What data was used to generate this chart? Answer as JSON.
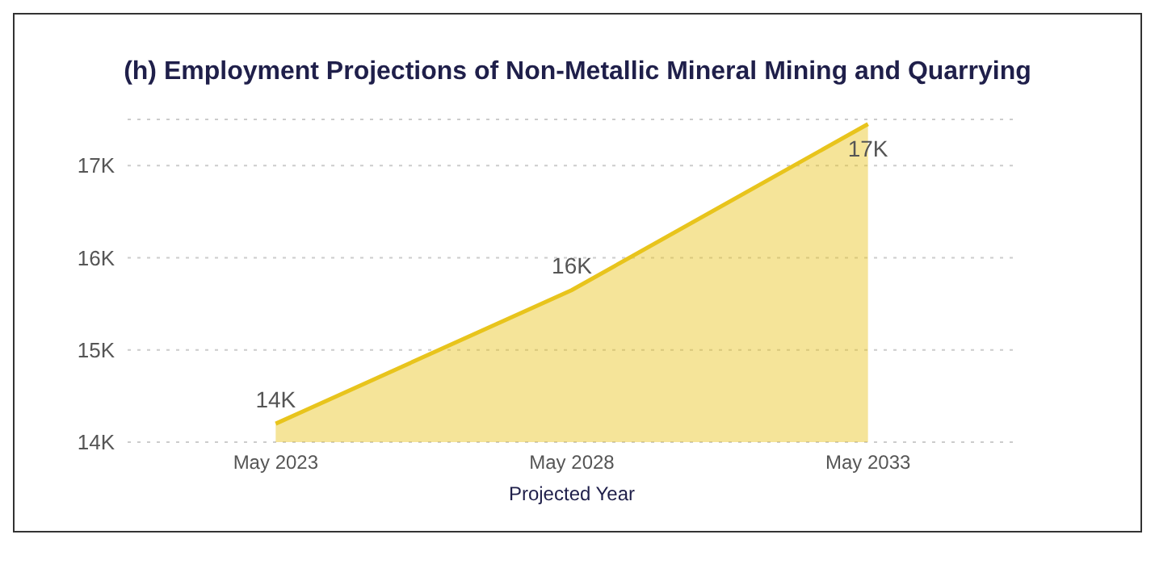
{
  "chart_data": {
    "type": "area",
    "title": "(h) Employment Projections of Non-Metallic Mineral Mining and Quarrying",
    "xlabel": "Projected Year",
    "categories": [
      "May 2023",
      "May 2028",
      "May 2033"
    ],
    "series": [
      {
        "color": "#e8c41c",
        "values": [
          14200,
          15650,
          17450
        ],
        "value_labels": [
          "14K",
          "16K",
          "17K"
        ]
      }
    ],
    "ylim": [
      14000,
      17500
    ],
    "yticks": [
      {
        "value": 14000,
        "label": "14K"
      },
      {
        "value": 15000,
        "label": "15K"
      },
      {
        "value": 16000,
        "label": "16K"
      },
      {
        "value": 17000,
        "label": "17K"
      }
    ],
    "grid": "y"
  }
}
